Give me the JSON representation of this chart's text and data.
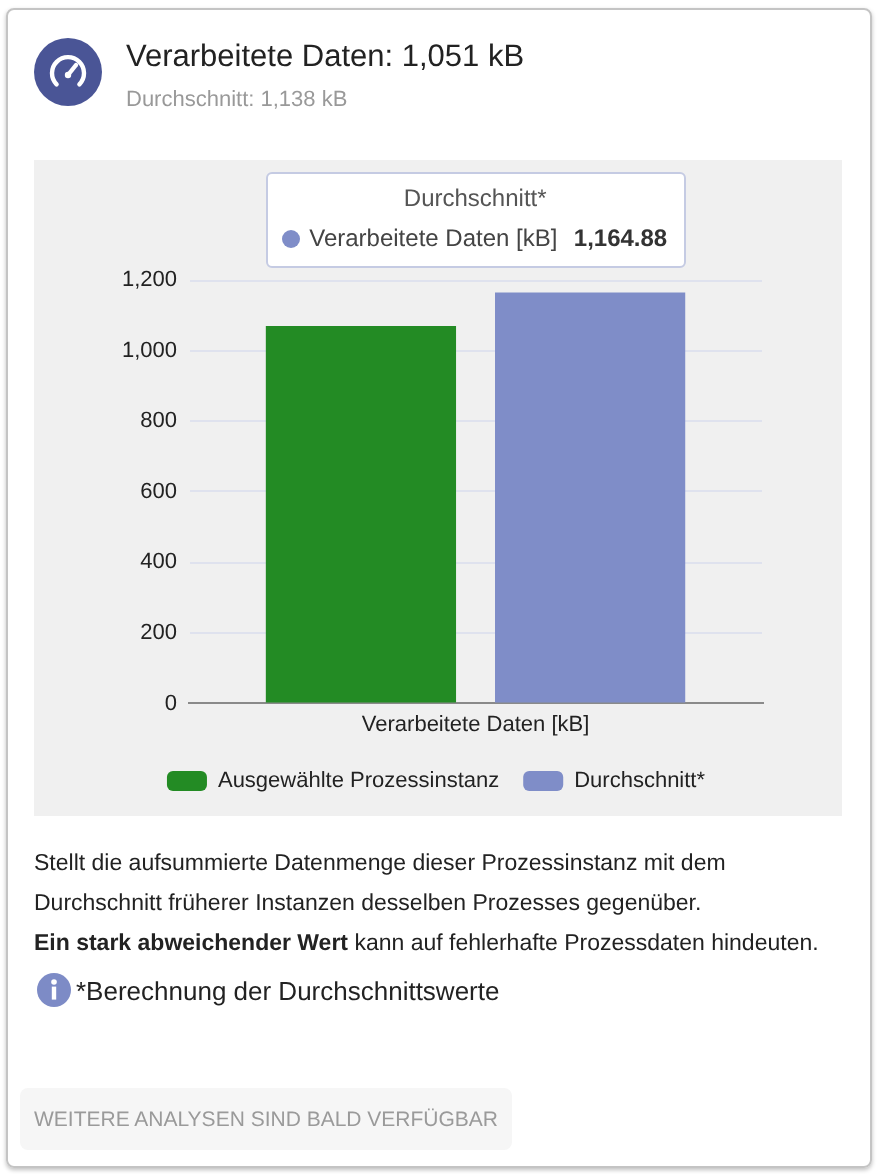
{
  "chart_data": {
    "type": "bar",
    "title": "Verarbeitete Daten: 1,051 kB",
    "subtitle": "Durchschnitt: 1,138 kB",
    "categories": [
      "Verarbeitete Daten [kB]"
    ],
    "series": [
      {
        "name": "Ausgewählte Prozessinstanz",
        "color": "#238b24",
        "values": [
          1070
        ]
      },
      {
        "name": "Durchschnitt*",
        "color": "#7f8dc8",
        "values": [
          1164.88
        ]
      }
    ],
    "ylim": [
      0,
      1200
    ],
    "yticks": [
      0,
      {
        "value": 200,
        "label": "200"
      },
      400,
      600,
      800,
      {
        "value": 1000,
        "label": "1,000"
      },
      {
        "value": 1200,
        "label": "1,200"
      }
    ],
    "grid": "y",
    "legend": "bottom",
    "annotations": [
      "Stellt die aufsummierte Datenmenge dieser Prozessinstanz mit dem Durchschnitt früherer Instanzen desselben Prozesses gegenüber.",
      "Ein stark abweichender Wert",
      "kann auf fehlerhafte Prozessdaten hindeuten.",
      "*Berechnung der Durchschnittswerte",
      "WEITERE ANALYSEN SIND BALD VERFÜGBAR",
      "1,164.88"
    ]
  }
}
